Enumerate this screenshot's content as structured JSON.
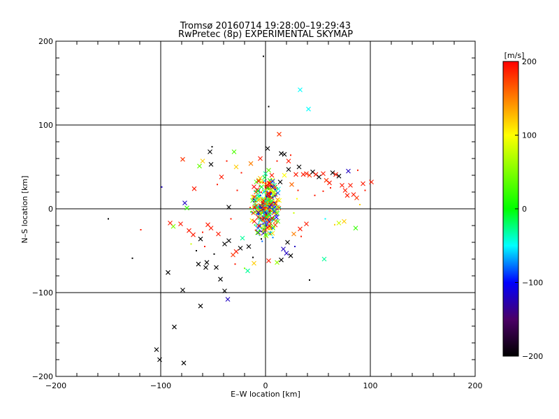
{
  "chart_data": {
    "type": "scatter",
    "title": "Tromsø 20160714 19:28:00–19:29:43",
    "subtitle": "RwPretec (8p) EXPERIMENTAL SKYMAP",
    "xlabel": "E–W location [km]",
    "ylabel": "N–S location [km]",
    "xlim": [
      -200,
      200
    ],
    "ylim": [
      -200,
      200
    ],
    "xticks": [
      -200,
      -100,
      0,
      100,
      200
    ],
    "yticks": [
      -200,
      -100,
      0,
      100,
      200
    ],
    "grid": true,
    "colorbar": {
      "label": "[m/s]",
      "range": [
        -200,
        200
      ],
      "ticks": [
        200,
        100,
        0,
        -100,
        -200
      ]
    },
    "markers": [
      "x",
      "dot"
    ],
    "points": [
      {
        "x": -2,
        "y": 182,
        "v": -200,
        "m": "dot"
      },
      {
        "x": 3,
        "y": 122,
        "v": -200,
        "m": "dot"
      },
      {
        "x": 33,
        "y": 142,
        "v": -50,
        "m": "x"
      },
      {
        "x": 41,
        "y": 119,
        "v": -50,
        "m": "x"
      },
      {
        "x": 13,
        "y": 89,
        "v": 180,
        "m": "x"
      },
      {
        "x": 2,
        "y": 72,
        "v": -200,
        "m": "x"
      },
      {
        "x": 15,
        "y": 66,
        "v": -200,
        "m": "x"
      },
      {
        "x": 18,
        "y": 65,
        "v": -200,
        "m": "x"
      },
      {
        "x": 22,
        "y": 57,
        "v": 190,
        "m": "x"
      },
      {
        "x": -30,
        "y": 68,
        "v": 30,
        "m": "x"
      },
      {
        "x": -53,
        "y": 68,
        "v": -200,
        "m": "x"
      },
      {
        "x": -52,
        "y": 53,
        "v": -200,
        "m": "x"
      },
      {
        "x": -63,
        "y": 51,
        "v": 40,
        "m": "x"
      },
      {
        "x": -79,
        "y": 59,
        "v": 180,
        "m": "x"
      },
      {
        "x": -60,
        "y": 57,
        "v": 120,
        "m": "x"
      },
      {
        "x": -42,
        "y": 38,
        "v": 190,
        "m": "x"
      },
      {
        "x": -28,
        "y": 50,
        "v": 120,
        "m": "x"
      },
      {
        "x": -14,
        "y": 54,
        "v": 150,
        "m": "x"
      },
      {
        "x": -5,
        "y": 60,
        "v": 190,
        "m": "x"
      },
      {
        "x": -68,
        "y": 24,
        "v": 190,
        "m": "x"
      },
      {
        "x": -99,
        "y": 26,
        "v": -120,
        "m": "dot"
      },
      {
        "x": -77,
        "y": 7,
        "v": -120,
        "m": "x"
      },
      {
        "x": -75,
        "y": 1,
        "v": 20,
        "m": "x"
      },
      {
        "x": -35,
        "y": 2,
        "v": -200,
        "m": "x"
      },
      {
        "x": -12,
        "y": 14,
        "v": 90,
        "m": "x"
      },
      {
        "x": -4,
        "y": 32,
        "v": 90,
        "m": "x"
      },
      {
        "x": 0,
        "y": 42,
        "v": -30,
        "m": "x"
      },
      {
        "x": 3,
        "y": 46,
        "v": 40,
        "m": "x"
      },
      {
        "x": 6,
        "y": 40,
        "v": 190,
        "m": "x"
      },
      {
        "x": 9,
        "y": 26,
        "v": 180,
        "m": "x"
      },
      {
        "x": 14,
        "y": 32,
        "v": -200,
        "m": "x"
      },
      {
        "x": 18,
        "y": 40,
        "v": 100,
        "m": "x"
      },
      {
        "x": 22,
        "y": 47,
        "v": -200,
        "m": "x"
      },
      {
        "x": 25,
        "y": 29,
        "v": 160,
        "m": "x"
      },
      {
        "x": 29,
        "y": 41,
        "v": 190,
        "m": "x"
      },
      {
        "x": 32,
        "y": 50,
        "v": -200,
        "m": "x"
      },
      {
        "x": 36,
        "y": 41,
        "v": 190,
        "m": "x"
      },
      {
        "x": 39,
        "y": 42,
        "v": 190,
        "m": "x"
      },
      {
        "x": 42,
        "y": 40,
        "v": 180,
        "m": "x"
      },
      {
        "x": 45,
        "y": 44,
        "v": -200,
        "m": "x"
      },
      {
        "x": 48,
        "y": 41,
        "v": 190,
        "m": "x"
      },
      {
        "x": 51,
        "y": 38,
        "v": -200,
        "m": "x"
      },
      {
        "x": 55,
        "y": 42,
        "v": 190,
        "m": "x"
      },
      {
        "x": 58,
        "y": 34,
        "v": 180,
        "m": "x"
      },
      {
        "x": 61,
        "y": 31,
        "v": 190,
        "m": "x"
      },
      {
        "x": 64,
        "y": 43,
        "v": -200,
        "m": "x"
      },
      {
        "x": 67,
        "y": 41,
        "v": 190,
        "m": "x"
      },
      {
        "x": 70,
        "y": 39,
        "v": -200,
        "m": "x"
      },
      {
        "x": 73,
        "y": 28,
        "v": 190,
        "m": "x"
      },
      {
        "x": 76,
        "y": 22,
        "v": 190,
        "m": "x"
      },
      {
        "x": 79,
        "y": 45,
        "v": -120,
        "m": "x"
      },
      {
        "x": 81,
        "y": 28,
        "v": 190,
        "m": "x"
      },
      {
        "x": 84,
        "y": 17,
        "v": 190,
        "m": "x"
      },
      {
        "x": 87,
        "y": 13,
        "v": 180,
        "m": "x"
      },
      {
        "x": 93,
        "y": 30,
        "v": 190,
        "m": "x"
      },
      {
        "x": 101,
        "y": 32,
        "v": 190,
        "m": "x"
      },
      {
        "x": 78,
        "y": 16,
        "v": 190,
        "m": "x"
      },
      {
        "x": 70,
        "y": -17,
        "v": 80,
        "m": "x"
      },
      {
        "x": 75,
        "y": -15,
        "v": 120,
        "m": "x"
      },
      {
        "x": 86,
        "y": -23,
        "v": 20,
        "m": "x"
      },
      {
        "x": 56,
        "y": -60,
        "v": -30,
        "m": "x"
      },
      {
        "x": 39,
        "y": -18,
        "v": 190,
        "m": "x"
      },
      {
        "x": 33,
        "y": -24,
        "v": 190,
        "m": "x"
      },
      {
        "x": 27,
        "y": -30,
        "v": 150,
        "m": "x"
      },
      {
        "x": 21,
        "y": -40,
        "v": -200,
        "m": "x"
      },
      {
        "x": 17,
        "y": -48,
        "v": -120,
        "m": "x"
      },
      {
        "x": 20,
        "y": -53,
        "v": -120,
        "m": "x"
      },
      {
        "x": 24,
        "y": -56,
        "v": -200,
        "m": "x"
      },
      {
        "x": 15,
        "y": -61,
        "v": -200,
        "m": "x"
      },
      {
        "x": 11,
        "y": -64,
        "v": 60,
        "m": "x"
      },
      {
        "x": 3,
        "y": -62,
        "v": 190,
        "m": "x"
      },
      {
        "x": -11,
        "y": -65,
        "v": 120,
        "m": "x"
      },
      {
        "x": -17,
        "y": -74,
        "v": -30,
        "m": "x"
      },
      {
        "x": -24,
        "y": -47,
        "v": -200,
        "m": "x"
      },
      {
        "x": -28,
        "y": -51,
        "v": 190,
        "m": "x"
      },
      {
        "x": -31,
        "y": -55,
        "v": 180,
        "m": "x"
      },
      {
        "x": -35,
        "y": -38,
        "v": -200,
        "m": "x"
      },
      {
        "x": -39,
        "y": -42,
        "v": -200,
        "m": "x"
      },
      {
        "x": -22,
        "y": -35,
        "v": -30,
        "m": "x"
      },
      {
        "x": -16,
        "y": -45,
        "v": -200,
        "m": "x"
      },
      {
        "x": -45,
        "y": -30,
        "v": 190,
        "m": "x"
      },
      {
        "x": -52,
        "y": -23,
        "v": 190,
        "m": "x"
      },
      {
        "x": -55,
        "y": -19,
        "v": 190,
        "m": "x"
      },
      {
        "x": -62,
        "y": -36,
        "v": -200,
        "m": "x"
      },
      {
        "x": -69,
        "y": -31,
        "v": 190,
        "m": "x"
      },
      {
        "x": -73,
        "y": -26,
        "v": 190,
        "m": "x"
      },
      {
        "x": -81,
        "y": -18,
        "v": 190,
        "m": "x"
      },
      {
        "x": -88,
        "y": -21,
        "v": 50,
        "m": "x"
      },
      {
        "x": -91,
        "y": -17,
        "v": 190,
        "m": "x"
      },
      {
        "x": -56,
        "y": -64,
        "v": -200,
        "m": "x"
      },
      {
        "x": -57,
        "y": -70,
        "v": -200,
        "m": "x"
      },
      {
        "x": -64,
        "y": -66,
        "v": -200,
        "m": "x"
      },
      {
        "x": -47,
        "y": -70,
        "v": -200,
        "m": "x"
      },
      {
        "x": -43,
        "y": -84,
        "v": -200,
        "m": "x"
      },
      {
        "x": -93,
        "y": -76,
        "v": -200,
        "m": "x"
      },
      {
        "x": -79,
        "y": -97,
        "v": -200,
        "m": "x"
      },
      {
        "x": -39,
        "y": -98,
        "v": -200,
        "m": "x"
      },
      {
        "x": -36,
        "y": -108,
        "v": -120,
        "m": "x"
      },
      {
        "x": -62,
        "y": -116,
        "v": -200,
        "m": "x"
      },
      {
        "x": -87,
        "y": -141,
        "v": -200,
        "m": "x"
      },
      {
        "x": -104,
        "y": -168,
        "v": -200,
        "m": "x"
      },
      {
        "x": -101,
        "y": -180,
        "v": -200,
        "m": "x"
      },
      {
        "x": -78,
        "y": -184,
        "v": -200,
        "m": "x"
      },
      {
        "x": -150,
        "y": -12,
        "v": -200,
        "m": "dot"
      },
      {
        "x": -119,
        "y": -25,
        "v": 190,
        "m": "dot"
      },
      {
        "x": -127,
        "y": -59,
        "v": -200,
        "m": "dot"
      },
      {
        "x": 42,
        "y": -85,
        "v": -200,
        "m": "dot"
      },
      {
        "x": 57,
        "y": -12,
        "v": -50,
        "m": "dot"
      },
      {
        "x": 66,
        "y": -19,
        "v": 120,
        "m": "dot"
      },
      {
        "x": 55,
        "y": 21,
        "v": 190,
        "m": "dot"
      },
      {
        "x": 47,
        "y": 16,
        "v": 190,
        "m": "dot"
      },
      {
        "x": 62,
        "y": 25,
        "v": 190,
        "m": "dot"
      },
      {
        "x": 30,
        "y": 12,
        "v": 100,
        "m": "dot"
      },
      {
        "x": 31,
        "y": 22,
        "v": 190,
        "m": "dot"
      },
      {
        "x": 27,
        "y": -5,
        "v": 80,
        "m": "dot"
      },
      {
        "x": 34,
        "y": -33,
        "v": 190,
        "m": "dot"
      },
      {
        "x": 28,
        "y": -45,
        "v": -120,
        "m": "dot"
      },
      {
        "x": -8,
        "y": -28,
        "v": 120,
        "m": "dot"
      },
      {
        "x": -4,
        "y": -36,
        "v": -200,
        "m": "dot"
      },
      {
        "x": -12,
        "y": -58,
        "v": -200,
        "m": "dot"
      },
      {
        "x": -20,
        "y": -71,
        "v": 50,
        "m": "dot"
      },
      {
        "x": -29,
        "y": -66,
        "v": 190,
        "m": "dot"
      },
      {
        "x": -49,
        "y": -54,
        "v": -200,
        "m": "dot"
      },
      {
        "x": -58,
        "y": -45,
        "v": 190,
        "m": "dot"
      },
      {
        "x": -66,
        "y": -50,
        "v": -200,
        "m": "dot"
      },
      {
        "x": -71,
        "y": -42,
        "v": 80,
        "m": "dot"
      },
      {
        "x": -60,
        "y": -28,
        "v": 190,
        "m": "dot"
      },
      {
        "x": -33,
        "y": -12,
        "v": 190,
        "m": "dot"
      },
      {
        "x": -27,
        "y": 22,
        "v": 190,
        "m": "dot"
      },
      {
        "x": -23,
        "y": 43,
        "v": 190,
        "m": "dot"
      },
      {
        "x": -46,
        "y": 29,
        "v": 190,
        "m": "dot"
      },
      {
        "x": -51,
        "y": 74,
        "v": -200,
        "m": "dot"
      },
      {
        "x": -37,
        "y": 57,
        "v": 190,
        "m": "dot"
      },
      {
        "x": 11,
        "y": 57,
        "v": 190,
        "m": "dot"
      },
      {
        "x": 24,
        "y": 64,
        "v": 190,
        "m": "dot"
      },
      {
        "x": 88,
        "y": 46,
        "v": 190,
        "m": "dot"
      },
      {
        "x": 95,
        "y": 22,
        "v": 190,
        "m": "dot"
      },
      {
        "x": 90,
        "y": 5,
        "v": 120,
        "m": "dot"
      }
    ]
  }
}
